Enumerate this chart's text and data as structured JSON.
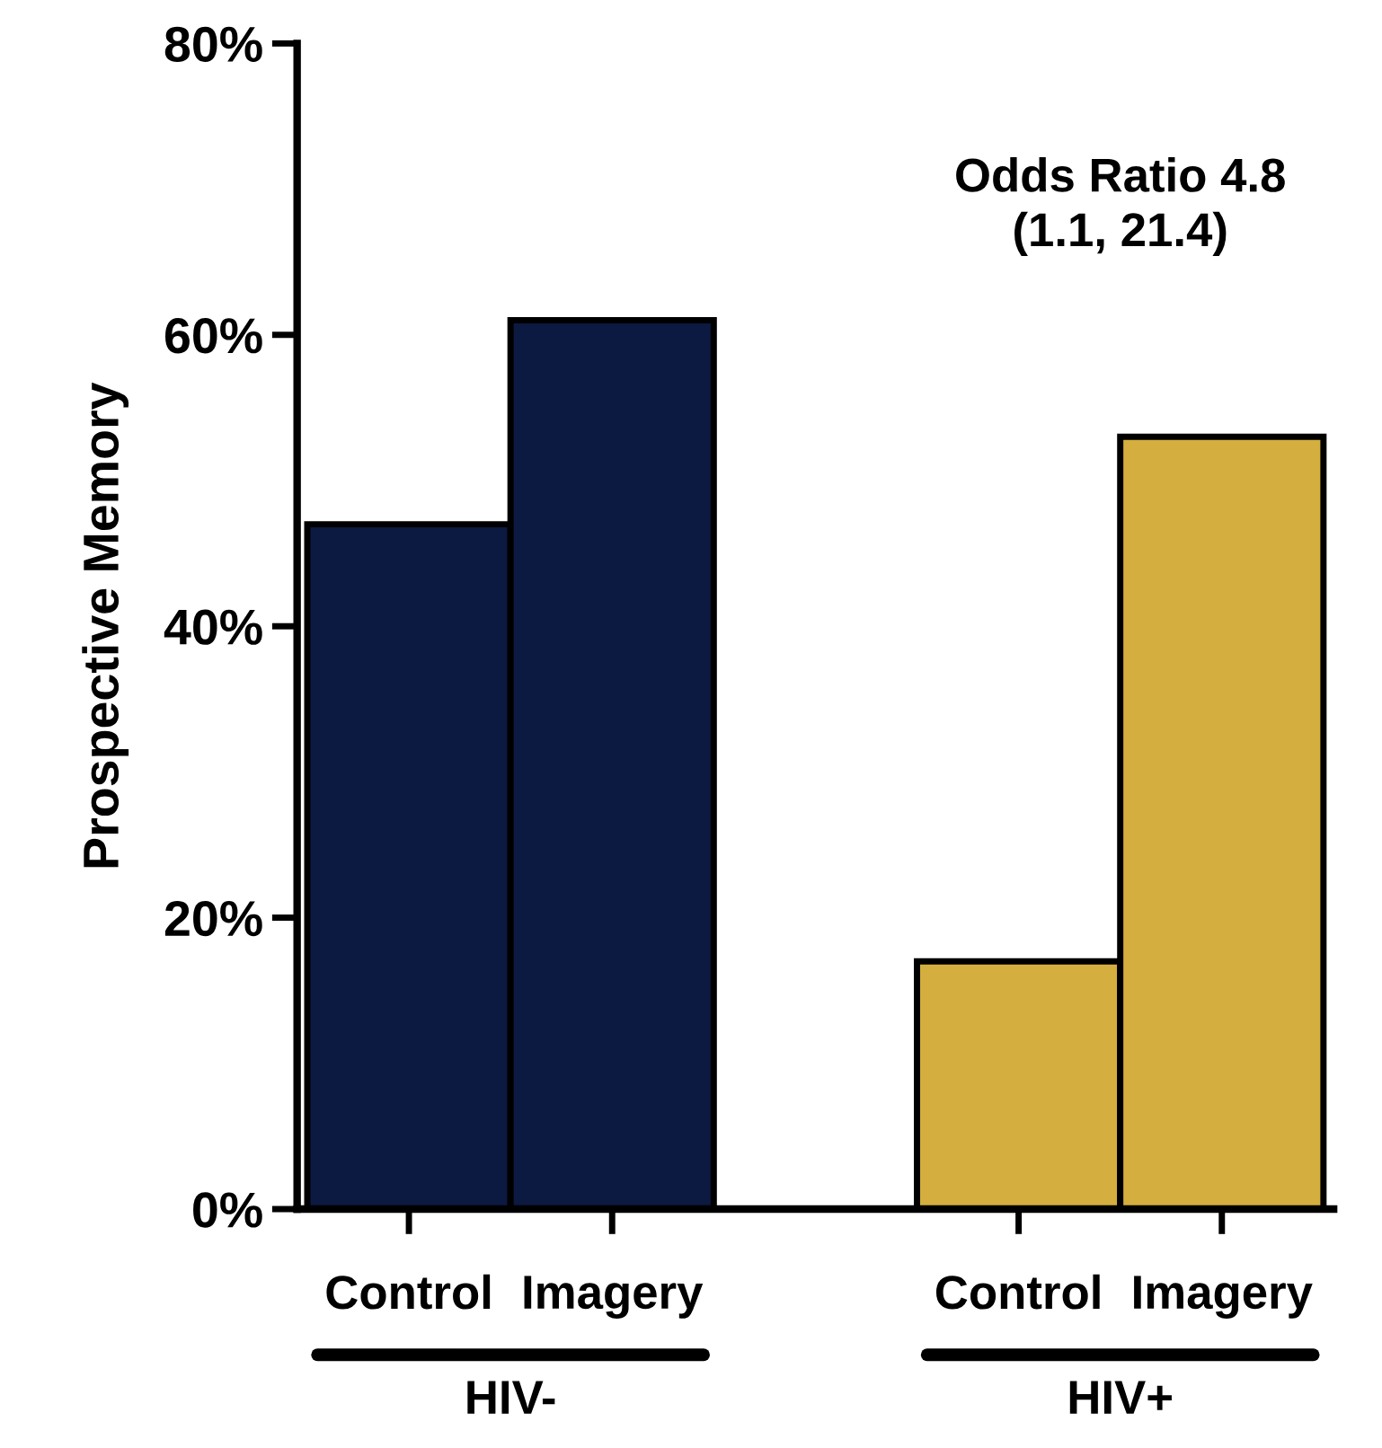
{
  "chart_data": {
    "type": "bar",
    "ylabel": "Prospective Memory",
    "categories": [
      "Control",
      "Imagery",
      null,
      "Control",
      "Imagery"
    ],
    "values": [
      47,
      61,
      null,
      17,
      53
    ],
    "colors": [
      "#0c1940",
      "#0c1940",
      "#ffffff",
      "#d4af3f",
      "#d4af3f"
    ],
    "ylim": [
      0,
      80
    ],
    "yticks": [
      {
        "value": 0,
        "label": "0%"
      },
      {
        "value": 20,
        "label": "20%"
      },
      {
        "value": 40,
        "label": "40%"
      },
      {
        "value": 60,
        "label": "60%"
      },
      {
        "value": 80,
        "label": "80%"
      }
    ],
    "grid": false,
    "legend": false,
    "annotations": [
      "Odds Ratio 4.8\n(1.1, 21.4)",
      "HIV-",
      "HIV+"
    ]
  }
}
